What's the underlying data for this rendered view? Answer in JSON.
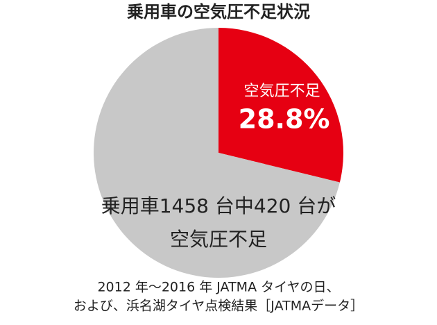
{
  "chart_data": {
    "type": "pie",
    "title": "乗用車の空気圧不足状況",
    "categories": [
      "空気圧不足",
      null
    ],
    "values": [
      28.8,
      71.2
    ],
    "value_labels": [
      "28.8%",
      null
    ],
    "colors": [
      "#e60012",
      "#c8c8c8"
    ],
    "annotation": [
      "乗用車1458 台中420 台が",
      "空気圧不足"
    ],
    "notes": [
      "2012 年～2016 年 JATMA タイヤの日、",
      "および、浜名湖タイヤ点検結果［JATMAデータ］"
    ]
  }
}
